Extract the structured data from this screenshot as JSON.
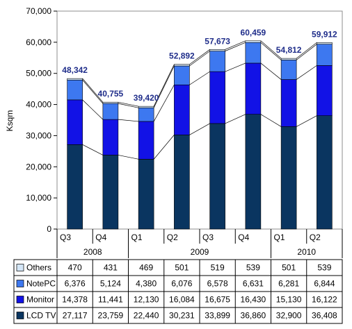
{
  "chart_data": {
    "type": "bar",
    "stacked": true,
    "ylabel": "Ksqm",
    "ylim": [
      0,
      70000
    ],
    "yticks": [
      0,
      10000,
      20000,
      30000,
      40000,
      50000,
      60000,
      70000
    ],
    "ytick_labels": [
      "0",
      "10,000",
      "20,000",
      "30,000",
      "40,000",
      "50,000",
      "60,000",
      "70,000"
    ],
    "grid": false,
    "categories": [
      "Q3",
      "Q4",
      "Q1",
      "Q2",
      "Q3",
      "Q4",
      "Q1",
      "Q2"
    ],
    "years": [
      {
        "label": "2008",
        "quarters": 2
      },
      {
        "label": "2009",
        "quarters": 4
      },
      {
        "label": "2010",
        "quarters": 2
      }
    ],
    "totals": [
      48342,
      40755,
      39420,
      52892,
      57673,
      60459,
      54812,
      59912
    ],
    "total_labels": [
      "48,342",
      "40,755",
      "39,420",
      "52,892",
      "57,673",
      "60,459",
      "54,812",
      "59,912"
    ],
    "series": [
      {
        "name": "LCD TV",
        "color": "#0a3560",
        "values": [
          27117,
          23759,
          22440,
          30231,
          33899,
          36860,
          32900,
          36408
        ],
        "labels": [
          "27,117",
          "23,759",
          "22,440",
          "30,231",
          "33,899",
          "36,860",
          "32,900",
          "36,408"
        ]
      },
      {
        "name": "Monitor",
        "color": "#1212e6",
        "values": [
          14378,
          11441,
          12130,
          16084,
          16675,
          16430,
          15130,
          16122
        ],
        "labels": [
          "14,378",
          "11,441",
          "12,130",
          "16,084",
          "16,675",
          "16,430",
          "15,130",
          "16,122"
        ]
      },
      {
        "name": "NotePC",
        "color": "#3d78f0",
        "values": [
          6376,
          5124,
          4380,
          6076,
          6578,
          6631,
          6281,
          6844
        ],
        "labels": [
          "6,376",
          "5,124",
          "4,380",
          "6,076",
          "6,578",
          "6,631",
          "6,281",
          "6,844"
        ]
      },
      {
        "name": "Others",
        "color": "#d4e6f7",
        "values": [
          470,
          431,
          469,
          501,
          519,
          539,
          501,
          539
        ],
        "labels": [
          "470",
          "431",
          "469",
          "501",
          "519",
          "539",
          "501",
          "539"
        ]
      }
    ],
    "total_label_color": "#1f2d8a",
    "legend": "table-below"
  }
}
